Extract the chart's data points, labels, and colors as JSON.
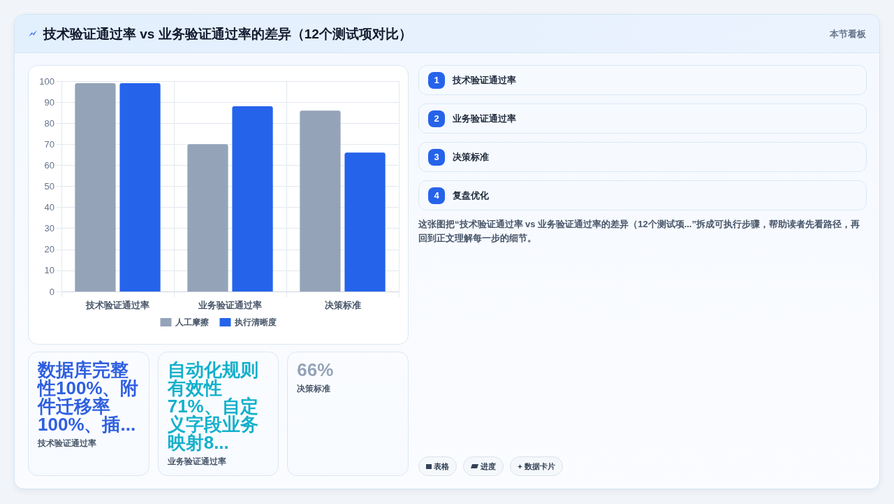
{
  "chart_data": [
    {
      "type": "bar",
      "title": "技术验证通过率 vs 业务验证通过率的差异（12个测试项对比）",
      "annotations": [
        "本节看板"
      ],
      "categories": [
        "技术验证通过率",
        "业务验证通过率",
        "决策标准"
      ],
      "series": [
        {
          "name": "人工摩擦",
          "color": "#94a3b8",
          "values": [
            99,
            70,
            86
          ]
        },
        {
          "name": "执行清晰度",
          "color": "#2563eb",
          "values": [
            99,
            88,
            66
          ]
        }
      ],
      "ylim": [
        0,
        100
      ],
      "yticks": [
        0,
        10,
        20,
        30,
        40,
        50,
        60,
        70,
        80,
        90,
        100
      ],
      "grid": true,
      "legend": "bottom"
    },
    {
      "type": "other",
      "categories": [
        "技术验证通过率"
      ],
      "value_labels": [
        "1"
      ],
      "color": "#2563eb"
    },
    {
      "type": "other",
      "categories": [
        "业务验证通过率"
      ],
      "value_labels": [
        "2"
      ],
      "color": "#2563eb"
    },
    {
      "type": "other",
      "categories": [
        "决策标准"
      ],
      "value_labels": [
        "3"
      ],
      "color": "#2563eb"
    },
    {
      "type": "other",
      "categories": [
        "复盘优化"
      ],
      "value_labels": [
        "4"
      ],
      "color": "#2563eb",
      "annotations": [
        "这张图把“技术验证通过率 vs 业务验证通过率的差异（12个测试项...”拆成可执行步骤，帮助读者先看路径，再回到正文理解每一步的细节。"
      ]
    },
    {
      "type": "other",
      "title": "数据库完整性100%、附件迁移率100%、插...",
      "subtitle": "技术验证通过率",
      "color": "#2f5fe0"
    },
    {
      "type": "other",
      "title": "自动化规则有效性71%、自定义字段业务映射8...",
      "subtitle": "业务验证通过率",
      "color": "#14b0cb"
    },
    {
      "type": "other",
      "title": "66%",
      "subtitle": "决策标准",
      "color": "#94a3b8"
    },
    {
      "type": "other",
      "annotations": [
        "表格",
        "进度",
        "数据卡片"
      ]
    }
  ]
}
